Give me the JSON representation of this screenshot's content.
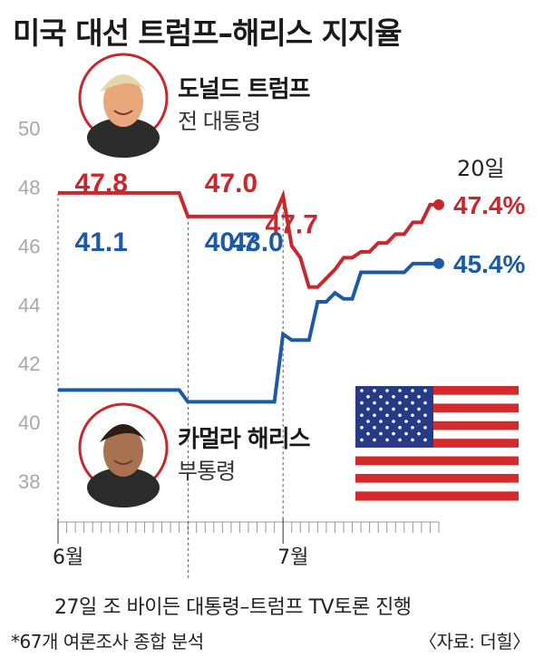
{
  "title": "미국 대선 트럼프–해리스 지지율",
  "people": {
    "trump": {
      "name": "도널드 트럼프",
      "role": "전 대통령"
    },
    "harris": {
      "name": "카멀라 해리스",
      "role": "부통령"
    }
  },
  "event_note": "27일 조 바이든 대통령–트럼프 TV토론 진행",
  "footnote": "*67개 여론조사 종합 분석",
  "source": "〈자료: 더힐〉",
  "colors": {
    "trump": "#c8282d",
    "harris": "#1d5aa6",
    "axis": "#999999"
  },
  "icons": [
    "trump-photo",
    "harris-photo",
    "us-flag-icon"
  ],
  "chart_data": {
    "type": "line",
    "ylim": [
      36,
      51
    ],
    "yticks": [
      "50",
      "48",
      "46",
      "44",
      "42",
      "40",
      "38"
    ],
    "xticks": [
      "6월",
      "7월"
    ],
    "end_label": "20일",
    "series": [
      {
        "name": "도널드 트럼프",
        "color": "#c8282d",
        "points": [
          [
            1,
            47.8
          ],
          [
            15,
            47.8
          ],
          [
            16,
            47.0
          ],
          [
            26,
            47.0
          ],
          [
            27,
            47.7
          ],
          [
            28,
            46.0
          ],
          [
            29,
            45.6
          ],
          [
            30,
            44.6
          ],
          [
            31,
            44.6
          ],
          [
            32,
            44.9
          ],
          [
            33,
            45.2
          ],
          [
            34,
            45.6
          ],
          [
            35,
            45.6
          ],
          [
            36,
            45.8
          ],
          [
            37,
            45.8
          ],
          [
            38,
            46.1
          ],
          [
            39,
            46.1
          ],
          [
            40,
            46.4
          ],
          [
            41,
            46.4
          ],
          [
            42,
            46.8
          ],
          [
            43,
            46.8
          ],
          [
            44,
            47.4
          ],
          [
            45,
            47.4
          ]
        ],
        "labels": [
          {
            "at": 6,
            "value": "47.8"
          },
          {
            "at": 21,
            "value": "47.0"
          },
          {
            "at": 28,
            "value": "47.7"
          },
          {
            "at": 45,
            "value": "47.4%"
          }
        ]
      },
      {
        "name": "카멀라 해리스",
        "color": "#1d5aa6",
        "points": [
          [
            1,
            41.1
          ],
          [
            15,
            41.1
          ],
          [
            16,
            40.7
          ],
          [
            26,
            40.7
          ],
          [
            27,
            43.0
          ],
          [
            28,
            42.8
          ],
          [
            29,
            42.8
          ],
          [
            30,
            42.8
          ],
          [
            31,
            44.1
          ],
          [
            32,
            44.1
          ],
          [
            33,
            44.4
          ],
          [
            34,
            44.2
          ],
          [
            35,
            44.2
          ],
          [
            36,
            45.1
          ],
          [
            37,
            45.1
          ],
          [
            38,
            45.1
          ],
          [
            39,
            45.1
          ],
          [
            40,
            45.1
          ],
          [
            41,
            45.1
          ],
          [
            42,
            45.4
          ],
          [
            43,
            45.4
          ],
          [
            44,
            45.4
          ],
          [
            45,
            45.4
          ]
        ],
        "labels": [
          {
            "at": 6,
            "value": "41.1"
          },
          {
            "at": 21,
            "value": "40.7"
          },
          {
            "at": 24,
            "value": "43.0"
          },
          {
            "at": 45,
            "value": "45.4%"
          }
        ]
      }
    ]
  }
}
